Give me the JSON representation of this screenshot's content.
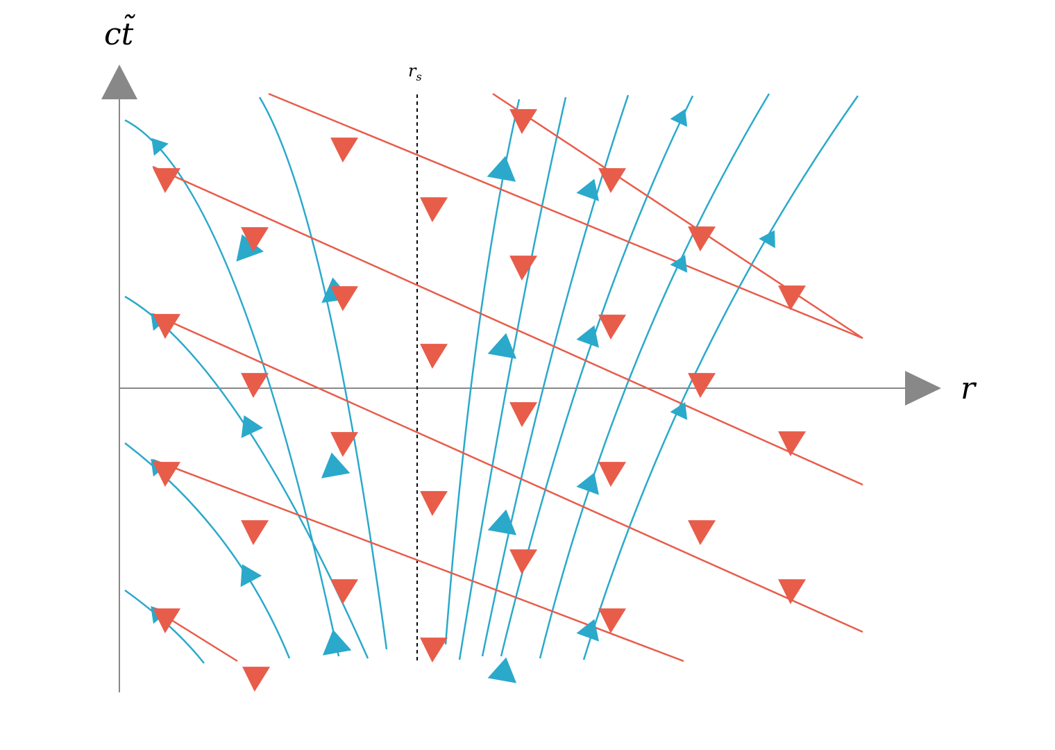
{
  "colors": {
    "outgoing": "#2aa9cb",
    "ingoing": "#e85c4a",
    "axis": "#888888",
    "horizon": "#000000"
  },
  "labels": {
    "y_axis": "ct̃",
    "x_axis": "r",
    "horizon": "r",
    "horizon_sub": "s"
  }
}
